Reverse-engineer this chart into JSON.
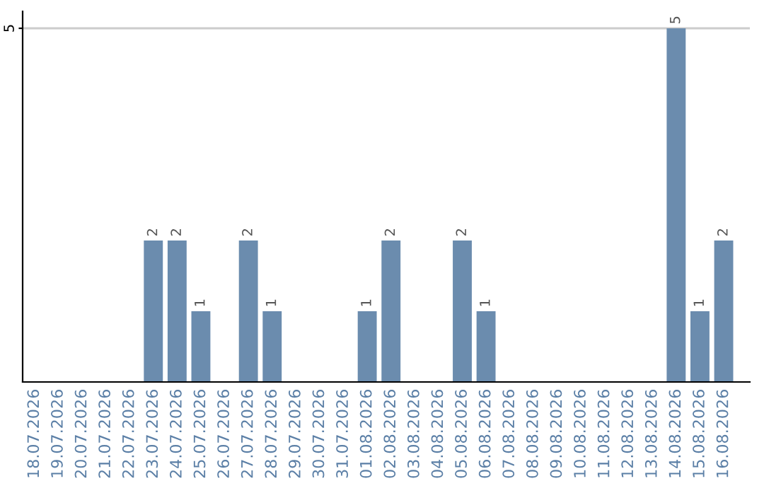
{
  "chart_data": {
    "type": "bar",
    "categories": [
      "18.07.2026",
      "19.07.2026",
      "20.07.2026",
      "21.07.2026",
      "22.07.2026",
      "23.07.2026",
      "24.07.2026",
      "25.07.2026",
      "26.07.2026",
      "27.07.2026",
      "28.07.2026",
      "29.07.2026",
      "30.07.2026",
      "31.07.2026",
      "01.08.2026",
      "02.08.2026",
      "03.08.2026",
      "04.08.2026",
      "05.08.2026",
      "06.08.2026",
      "07.08.2026",
      "08.08.2026",
      "09.08.2026",
      "10.08.2026",
      "11.08.2026",
      "12.08.2026",
      "13.08.2026",
      "14.08.2026",
      "15.08.2026",
      "16.08.2026"
    ],
    "values": [
      0,
      0,
      0,
      0,
      0,
      2,
      2,
      1,
      0,
      2,
      1,
      0,
      0,
      0,
      1,
      2,
      0,
      0,
      2,
      1,
      0,
      0,
      0,
      0,
      0,
      0,
      0,
      5,
      1,
      2
    ],
    "value_labels": [
      null,
      null,
      null,
      null,
      null,
      "2",
      "2",
      "1",
      null,
      "2",
      "1",
      null,
      null,
      null,
      "1",
      "2",
      null,
      null,
      "2",
      "1",
      null,
      null,
      null,
      null,
      null,
      null,
      null,
      "5",
      "1",
      "2"
    ],
    "color": "#6b8cae",
    "ylim": [
      0,
      5.24
    ],
    "yticks": [
      5
    ],
    "grid": "y",
    "legend": false
  }
}
